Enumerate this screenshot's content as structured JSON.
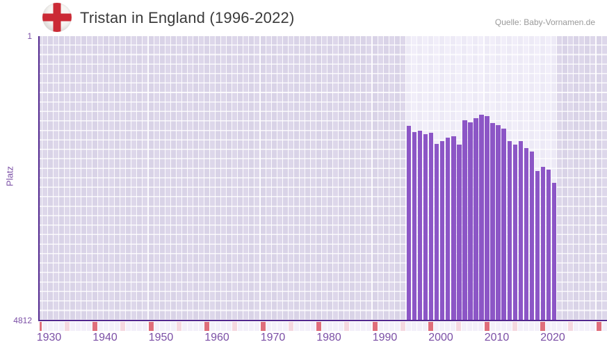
{
  "header": {
    "title": "Tristan in England (1996-2022)",
    "source": "Quelle: Baby-Vornamen.de"
  },
  "chart_data": {
    "type": "bar",
    "title": "Tristan in England (1996-2022)",
    "xlabel": "",
    "ylabel": "Platz",
    "y_axis": {
      "min": 1,
      "max": 4812,
      "inverted": true,
      "tick_labels": [
        "1",
        "4812"
      ]
    },
    "x_axis": {
      "first_year": 1930,
      "last_year": 2031,
      "labeled_years": [
        1930,
        1940,
        1950,
        1960,
        1970,
        1980,
        1990,
        2000,
        2010,
        2020
      ]
    },
    "highlight_year_range": [
      1996,
      2022
    ],
    "grid": true,
    "legend": false,
    "series": [
      {
        "name": "Platz",
        "x": [
          1996,
          1997,
          1998,
          1999,
          2000,
          2001,
          2002,
          2003,
          2004,
          2005,
          2006,
          2007,
          2008,
          2009,
          2010,
          2011,
          2012,
          2013,
          2014,
          2015,
          2016,
          2017,
          2018,
          2019,
          2020,
          2021,
          2022
        ],
        "values": [
          1520,
          1630,
          1605,
          1665,
          1640,
          1830,
          1780,
          1720,
          1695,
          1835,
          1425,
          1460,
          1395,
          1330,
          1355,
          1475,
          1510,
          1570,
          1780,
          1840,
          1785,
          1895,
          1955,
          2290,
          2215,
          2270,
          2490
        ]
      }
    ]
  },
  "colors": {
    "bar": "#8c56c6",
    "axis_line": "#52288f",
    "tick_text": "#7b4fa6",
    "cell_dark_a": "#ddd7ea",
    "cell_dark_b": "#d9d3e7",
    "cell_light_a": "#f1eef9",
    "cell_light_b": "#edeaf6",
    "strip_decade": "#df6e7b",
    "strip_half_decade": "#f5d8e0",
    "strip_year": "#f3f0fa",
    "flag_red": "#cb2a35",
    "flag_white": "#f7f6f3",
    "title_text": "#3a3a3a",
    "source_text": "#9a9a9a"
  }
}
